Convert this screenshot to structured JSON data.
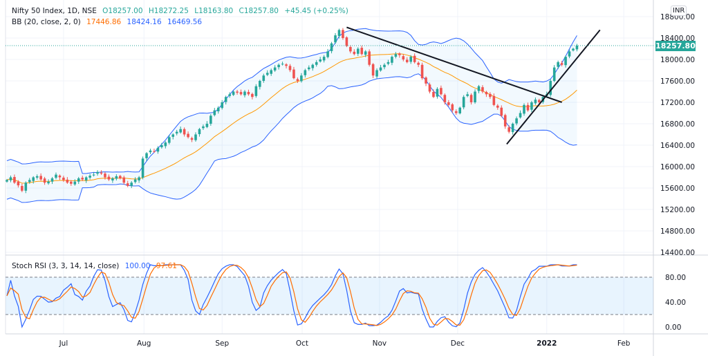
{
  "header": {
    "symbol": "Nifty 50 Index, 1D, NSE",
    "o": "O18257.00",
    "h": "H18272.25",
    "l": "L18163.80",
    "c": "C18257.80",
    "change": "+45.45 (+0.25%)"
  },
  "bb": {
    "label": "BB (20, close, 2, 0)",
    "basis": "17446.86",
    "upper": "18424.16",
    "lower": "16469.56"
  },
  "stoch": {
    "label": "Stoch RSI (3, 3, 14, 14, close)",
    "k": "100.00",
    "d": "97.61",
    "levels": [
      80,
      20
    ],
    "ticks": [
      "80.00",
      "40.00",
      "0.00"
    ],
    "tick_values": [
      80,
      40,
      0
    ]
  },
  "currency": "INR",
  "last_price": "18257.80",
  "colors": {
    "up": "#26a69a",
    "down": "#ef5350",
    "bb_basis": "#ff9800",
    "bb_band": "#2962ff",
    "k": "#2962ff",
    "d": "#ff6d00"
  },
  "chart_data": {
    "type": "candlestick",
    "price_ticks": [
      "18800.00",
      "18400.00",
      "18000.00",
      "17600.00",
      "17200.00",
      "16800.00",
      "16400.00",
      "16000.00",
      "15600.00",
      "15200.00",
      "14800.00",
      "14400.00"
    ],
    "price_tick_values": [
      18800,
      18400,
      18000,
      17600,
      17200,
      16800,
      16400,
      16000,
      15600,
      15200,
      14800,
      14400
    ],
    "ylim": [
      14400,
      18800
    ],
    "months": [
      {
        "label": "Jul",
        "index": 15
      },
      {
        "label": "Aug",
        "index": 36.3
      },
      {
        "label": "Sep",
        "index": 57
      },
      {
        "label": "Oct",
        "index": 78.2
      },
      {
        "label": "Nov",
        "index": 98.7
      },
      {
        "label": "Dec",
        "index": 119.4
      },
      {
        "label": "2022",
        "index": 143
      },
      {
        "label": "Feb",
        "index": 163.4
      }
    ],
    "close": [
      15750,
      15800,
      15700,
      15650,
      15550,
      15700,
      15750,
      15800,
      15820,
      15760,
      15700,
      15720,
      15780,
      15850,
      15800,
      15750,
      15700,
      15680,
      15720,
      15780,
      15760,
      15800,
      15830,
      15850,
      15900,
      15870,
      15800,
      15760,
      15780,
      15820,
      15780,
      15700,
      15640,
      15700,
      15760,
      15800,
      16150,
      16250,
      16300,
      16280,
      16350,
      16400,
      16450,
      16550,
      16600,
      16650,
      16700,
      16600,
      16550,
      16500,
      16600,
      16700,
      16750,
      16800,
      16950,
      17050,
      17100,
      17200,
      17300,
      17350,
      17400,
      17380,
      17350,
      17400,
      17350,
      17300,
      17500,
      17600,
      17700,
      17750,
      17800,
      17850,
      17900,
      17920,
      17880,
      17800,
      17650,
      17600,
      17700,
      17800,
      17850,
      17900,
      17950,
      18000,
      18050,
      18150,
      18300,
      18450,
      18550,
      18400,
      18250,
      18150,
      18100,
      18200,
      18100,
      18150,
      17900,
      17700,
      17800,
      17850,
      17900,
      17950,
      18050,
      18100,
      18080,
      18000,
      17950,
      18050,
      17950,
      17900,
      17650,
      17550,
      17400,
      17300,
      17450,
      17350,
      17200,
      17150,
      17050,
      17000,
      17100,
      17300,
      17350,
      17200,
      17400,
      17500,
      17400,
      17350,
      17300,
      17150,
      17100,
      16950,
      16750,
      16650,
      16800,
      16900,
      17000,
      17150,
      17050,
      17200,
      17250,
      17200,
      17300,
      17350,
      17600,
      17850,
      17950,
      17900,
      18050,
      18150,
      18200,
      18257.8
    ],
    "trendlines": [
      {
        "from": [
          90,
          18600
        ],
        "to": [
          147,
          17200
        ]
      },
      {
        "from": [
          132.4,
          16420
        ],
        "to": [
          157.1,
          18550
        ]
      }
    ]
  }
}
